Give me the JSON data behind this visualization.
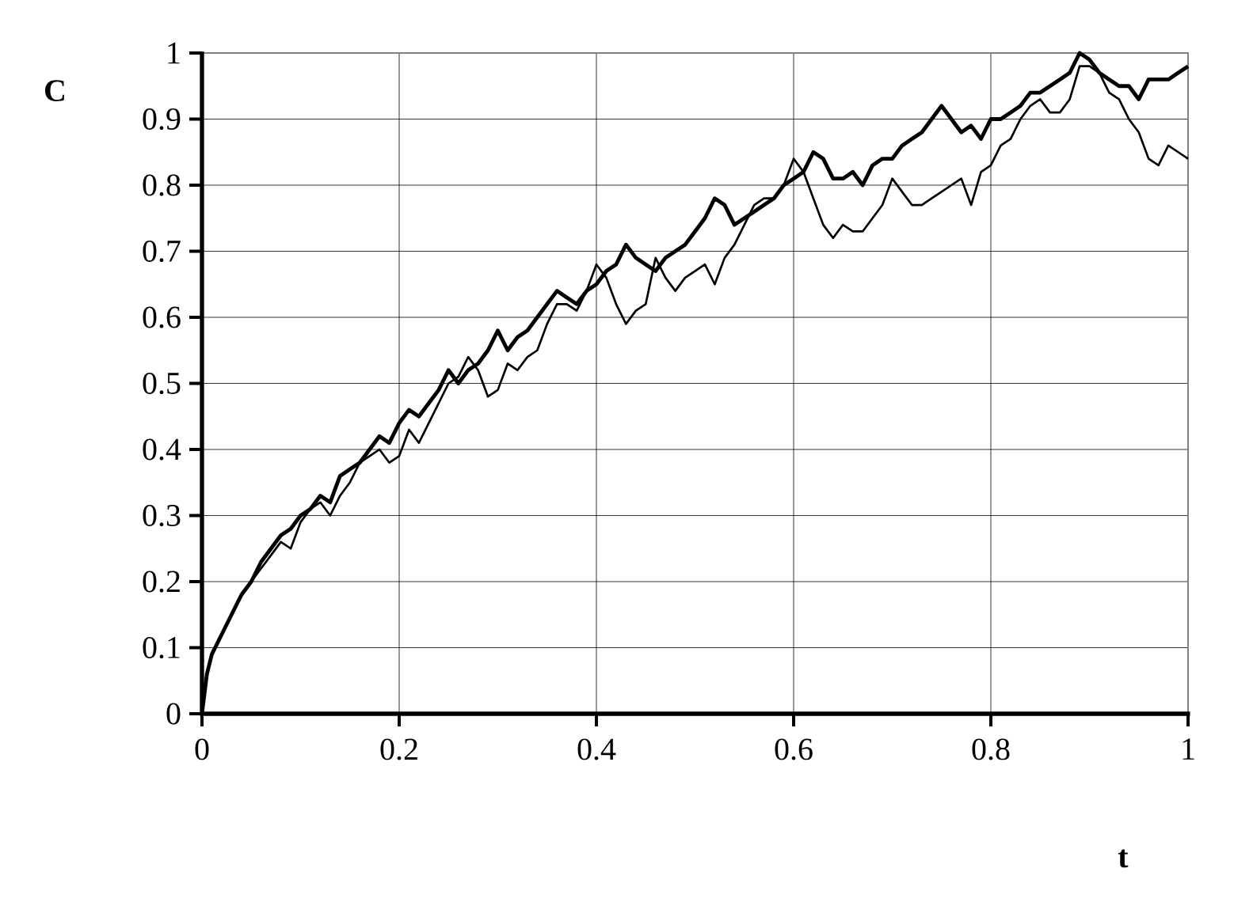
{
  "chart_data": {
    "type": "line",
    "xlabel": "t",
    "ylabel": "C",
    "xlim": [
      0,
      1
    ],
    "ylim": [
      0,
      1
    ],
    "xticks": [
      0,
      0.2,
      0.4,
      0.6,
      0.8,
      1
    ],
    "yticks": [
      0,
      0.1,
      0.2,
      0.3,
      0.4,
      0.5,
      0.6,
      0.7,
      0.8,
      0.9,
      1
    ],
    "grid": true,
    "marker": "none",
    "line_style": "solid",
    "series": [
      {
        "color": "#000000",
        "x": [
          0,
          0.005,
          0.01,
          0.02,
          0.03,
          0.04,
          0.05,
          0.06,
          0.07,
          0.08,
          0.09,
          0.1,
          0.11,
          0.12,
          0.13,
          0.14,
          0.15,
          0.16,
          0.17,
          0.18,
          0.19,
          0.2,
          0.21,
          0.22,
          0.23,
          0.24,
          0.25,
          0.26,
          0.27,
          0.28,
          0.29,
          0.3,
          0.31,
          0.32,
          0.33,
          0.34,
          0.35,
          0.36,
          0.37,
          0.38,
          0.39,
          0.4,
          0.41,
          0.42,
          0.43,
          0.44,
          0.45,
          0.46,
          0.47,
          0.48,
          0.49,
          0.5,
          0.51,
          0.52,
          0.53,
          0.54,
          0.55,
          0.56,
          0.57,
          0.58,
          0.59,
          0.6,
          0.61,
          0.62,
          0.63,
          0.64,
          0.65,
          0.66,
          0.67,
          0.68,
          0.69,
          0.7,
          0.71,
          0.72,
          0.73,
          0.74,
          0.75,
          0.76,
          0.77,
          0.78,
          0.79,
          0.8,
          0.81,
          0.82,
          0.83,
          0.84,
          0.85,
          0.86,
          0.87,
          0.88,
          0.89,
          0.9,
          0.91,
          0.92,
          0.93,
          0.94,
          0.95,
          0.96,
          0.97,
          0.98,
          0.99,
          1
        ],
        "values": [
          0,
          0.06,
          0.09,
          0.12,
          0.15,
          0.18,
          0.2,
          0.23,
          0.25,
          0.27,
          0.28,
          0.3,
          0.31,
          0.33,
          0.32,
          0.36,
          0.37,
          0.38,
          0.4,
          0.42,
          0.41,
          0.44,
          0.46,
          0.45,
          0.47,
          0.49,
          0.52,
          0.5,
          0.52,
          0.53,
          0.55,
          0.58,
          0.55,
          0.57,
          0.58,
          0.6,
          0.62,
          0.64,
          0.63,
          0.62,
          0.64,
          0.65,
          0.67,
          0.68,
          0.71,
          0.69,
          0.68,
          0.67,
          0.69,
          0.7,
          0.71,
          0.73,
          0.75,
          0.78,
          0.77,
          0.74,
          0.75,
          0.76,
          0.77,
          0.78,
          0.8,
          0.81,
          0.82,
          0.85,
          0.84,
          0.81,
          0.81,
          0.82,
          0.8,
          0.83,
          0.84,
          0.84,
          0.86,
          0.87,
          0.88,
          0.9,
          0.92,
          0.9,
          0.88,
          0.89,
          0.87,
          0.9,
          0.9,
          0.91,
          0.92,
          0.94,
          0.94,
          0.95,
          0.96,
          0.97,
          1.0,
          0.99,
          0.97,
          0.96,
          0.95,
          0.95,
          0.93,
          0.96,
          0.96,
          0.96,
          0.97,
          0.98
        ]
      },
      {
        "color": "#000000",
        "x": [
          0,
          0.005,
          0.01,
          0.02,
          0.03,
          0.04,
          0.05,
          0.06,
          0.07,
          0.08,
          0.09,
          0.1,
          0.11,
          0.12,
          0.13,
          0.14,
          0.15,
          0.16,
          0.17,
          0.18,
          0.19,
          0.2,
          0.21,
          0.22,
          0.23,
          0.24,
          0.25,
          0.26,
          0.27,
          0.28,
          0.29,
          0.3,
          0.31,
          0.32,
          0.33,
          0.34,
          0.35,
          0.36,
          0.37,
          0.38,
          0.39,
          0.4,
          0.41,
          0.42,
          0.43,
          0.44,
          0.45,
          0.46,
          0.47,
          0.48,
          0.49,
          0.5,
          0.51,
          0.52,
          0.53,
          0.54,
          0.55,
          0.56,
          0.57,
          0.58,
          0.59,
          0.6,
          0.61,
          0.62,
          0.63,
          0.64,
          0.65,
          0.66,
          0.67,
          0.68,
          0.69,
          0.7,
          0.71,
          0.72,
          0.73,
          0.74,
          0.75,
          0.76,
          0.77,
          0.78,
          0.79,
          0.8,
          0.81,
          0.82,
          0.83,
          0.84,
          0.85,
          0.86,
          0.87,
          0.88,
          0.89,
          0.9,
          0.91,
          0.92,
          0.93,
          0.94,
          0.95,
          0.96,
          0.97,
          0.98,
          0.99,
          1
        ],
        "values": [
          0,
          0.06,
          0.09,
          0.12,
          0.15,
          0.18,
          0.2,
          0.22,
          0.24,
          0.26,
          0.25,
          0.29,
          0.31,
          0.32,
          0.3,
          0.33,
          0.35,
          0.38,
          0.39,
          0.4,
          0.38,
          0.39,
          0.43,
          0.41,
          0.44,
          0.47,
          0.5,
          0.51,
          0.54,
          0.52,
          0.48,
          0.49,
          0.53,
          0.52,
          0.54,
          0.55,
          0.59,
          0.62,
          0.62,
          0.61,
          0.64,
          0.68,
          0.66,
          0.62,
          0.59,
          0.61,
          0.62,
          0.69,
          0.66,
          0.64,
          0.66,
          0.67,
          0.68,
          0.65,
          0.69,
          0.71,
          0.74,
          0.77,
          0.78,
          0.78,
          0.8,
          0.84,
          0.82,
          0.78,
          0.74,
          0.72,
          0.74,
          0.73,
          0.73,
          0.75,
          0.77,
          0.81,
          0.79,
          0.77,
          0.77,
          0.78,
          0.79,
          0.8,
          0.81,
          0.77,
          0.82,
          0.83,
          0.86,
          0.87,
          0.9,
          0.92,
          0.93,
          0.91,
          0.91,
          0.93,
          0.98,
          0.98,
          0.97,
          0.94,
          0.93,
          0.9,
          0.88,
          0.84,
          0.83,
          0.86,
          0.85,
          0.84
        ]
      }
    ]
  }
}
